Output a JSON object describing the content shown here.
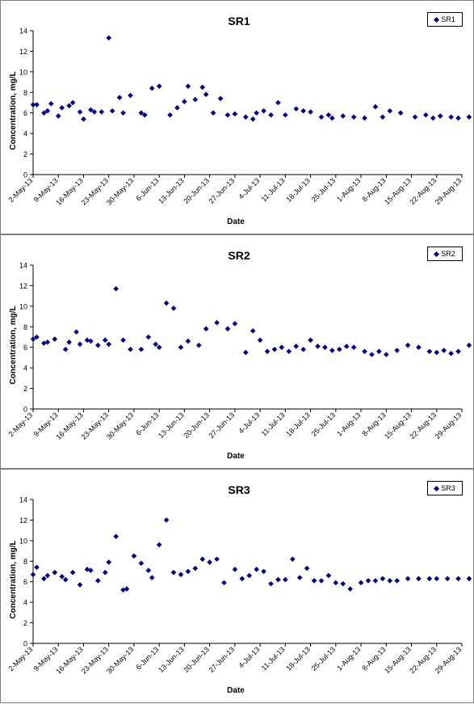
{
  "chart_data": [
    {
      "type": "scatter",
      "title": "SR1",
      "xlabel": "Date",
      "ylabel": "Concentration, mg/L",
      "ylim": [
        0,
        14
      ],
      "yticks": [
        0,
        2,
        4,
        6,
        8,
        10,
        12,
        14
      ],
      "xticks": [
        "2-May-13",
        "9-May-13",
        "16-May-13",
        "23-May-13",
        "30-May-13",
        "6-Jun-13",
        "13-Jun-13",
        "20-Jun-13",
        "27-Jun-13",
        "4-Jul-13",
        "11-Jul-13",
        "18-Jul-13",
        "25-Jul-13",
        "1-Aug-13",
        "8-Aug-13",
        "15-Aug-13",
        "22-Aug-13",
        "29-Aug-13"
      ],
      "grid": false,
      "legend_position": "top-right",
      "marker_color": "#000080",
      "series": [
        {
          "name": "SR1",
          "x": [
            "2-May-13",
            "3-May-13",
            "5-May-13",
            "6-May-13",
            "7-May-13",
            "9-May-13",
            "10-May-13",
            "12-May-13",
            "13-May-13",
            "15-May-13",
            "16-May-13",
            "18-May-13",
            "19-May-13",
            "21-May-13",
            "23-May-13",
            "24-May-13",
            "26-May-13",
            "27-May-13",
            "29-May-13",
            "1-Jun-13",
            "2-Jun-13",
            "4-Jun-13",
            "6-Jun-13",
            "9-Jun-13",
            "11-Jun-13",
            "13-Jun-13",
            "14-Jun-13",
            "16-Jun-13",
            "18-Jun-13",
            "19-Jun-13",
            "21-Jun-13",
            "23-Jun-13",
            "25-Jun-13",
            "27-Jun-13",
            "30-Jun-13",
            "2-Jul-13",
            "3-Jul-13",
            "5-Jul-13",
            "7-Jul-13",
            "9-Jul-13",
            "11-Jul-13",
            "14-Jul-13",
            "16-Jul-13",
            "18-Jul-13",
            "21-Jul-13",
            "23-Jul-13",
            "24-Jul-13",
            "27-Jul-13",
            "30-Jul-13",
            "2-Aug-13",
            "5-Aug-13",
            "7-Aug-13",
            "9-Aug-13",
            "12-Aug-13",
            "16-Aug-13",
            "19-Aug-13",
            "21-Aug-13",
            "23-Aug-13",
            "26-Aug-13",
            "28-Aug-13",
            "31-Aug-13"
          ],
          "y": [
            6.8,
            6.8,
            6.0,
            6.2,
            6.9,
            5.7,
            6.5,
            6.7,
            7.0,
            6.1,
            5.4,
            6.3,
            6.1,
            6.1,
            13.3,
            6.2,
            7.5,
            6.0,
            7.7,
            6.0,
            5.8,
            8.4,
            8.6,
            5.8,
            6.5,
            7.1,
            8.6,
            7.3,
            8.5,
            7.8,
            6.0,
            7.4,
            5.8,
            5.9,
            5.6,
            5.4,
            6.0,
            6.2,
            5.8,
            7.0,
            5.8,
            6.4,
            6.2,
            6.1,
            5.6,
            5.8,
            5.5,
            5.7,
            5.6,
            5.5,
            6.6,
            5.6,
            6.2,
            6.0,
            5.6,
            5.8,
            5.5,
            5.7,
            5.6,
            5.5,
            5.6
          ]
        }
      ]
    },
    {
      "type": "scatter",
      "title": "SR2",
      "xlabel": "Date",
      "ylabel": "Concentration, mg/L",
      "ylim": [
        0,
        14
      ],
      "yticks": [
        0,
        2,
        4,
        6,
        8,
        10,
        12,
        14
      ],
      "xticks": [
        "2-May-13",
        "9-May-13",
        "16-May-13",
        "23-May-13",
        "30-May-13",
        "6-Jun-13",
        "13-Jun-13",
        "20-Jun-13",
        "27-Jun-13",
        "4-Jul-13",
        "11-Jul-13",
        "18-Jul-13",
        "25-Jul-13",
        "1-Aug-13",
        "8-Aug-13",
        "15-Aug-13",
        "22-Aug-13",
        "29-Aug-13"
      ],
      "grid": false,
      "legend_position": "top-right",
      "marker_color": "#000080",
      "series": [
        {
          "name": "SR2",
          "x": [
            "2-May-13",
            "3-May-13",
            "5-May-13",
            "6-May-13",
            "8-May-13",
            "11-May-13",
            "12-May-13",
            "14-May-13",
            "15-May-13",
            "17-May-13",
            "18-May-13",
            "20-May-13",
            "22-May-13",
            "23-May-13",
            "25-May-13",
            "27-May-13",
            "29-May-13",
            "1-Jun-13",
            "3-Jun-13",
            "5-Jun-13",
            "6-Jun-13",
            "8-Jun-13",
            "10-Jun-13",
            "12-Jun-13",
            "14-Jun-13",
            "17-Jun-13",
            "19-Jun-13",
            "22-Jun-13",
            "25-Jun-13",
            "27-Jun-13",
            "30-Jun-13",
            "2-Jul-13",
            "4-Jul-13",
            "6-Jul-13",
            "8-Jul-13",
            "10-Jul-13",
            "12-Jul-13",
            "14-Jul-13",
            "16-Jul-13",
            "18-Jul-13",
            "20-Jul-13",
            "22-Jul-13",
            "24-Jul-13",
            "26-Jul-13",
            "28-Jul-13",
            "30-Jul-13",
            "2-Aug-13",
            "4-Aug-13",
            "6-Aug-13",
            "8-Aug-13",
            "11-Aug-13",
            "14-Aug-13",
            "17-Aug-13",
            "20-Aug-13",
            "22-Aug-13",
            "24-Aug-13",
            "26-Aug-13",
            "28-Aug-13",
            "31-Aug-13"
          ],
          "y": [
            6.8,
            7.0,
            6.4,
            6.5,
            6.8,
            5.8,
            6.5,
            7.5,
            6.3,
            6.7,
            6.6,
            6.2,
            6.7,
            6.3,
            11.7,
            6.7,
            5.8,
            5.8,
            7.0,
            6.3,
            6.0,
            10.3,
            9.8,
            6.0,
            6.6,
            6.2,
            7.8,
            8.4,
            7.8,
            8.3,
            5.5,
            7.6,
            6.7,
            5.6,
            5.8,
            6.0,
            5.6,
            6.1,
            5.8,
            6.7,
            6.1,
            6.0,
            5.7,
            5.8,
            6.1,
            6.0,
            5.6,
            5.3,
            5.6,
            5.3,
            5.7,
            6.2,
            6.0,
            5.6,
            5.5,
            5.7,
            5.4,
            5.6,
            6.2
          ]
        }
      ]
    },
    {
      "type": "scatter",
      "title": "SR3",
      "xlabel": "Date",
      "ylabel": "Concentration, mg/L",
      "ylim": [
        0,
        14
      ],
      "yticks": [
        0,
        2,
        4,
        6,
        8,
        10,
        12,
        14
      ],
      "xticks": [
        "2-May-13",
        "9-May-13",
        "16-May-13",
        "23-May-13",
        "30-May-13",
        "6-Jun-13",
        "13-Jun-13",
        "20-Jun-13",
        "27-Jun-13",
        "4-Jul-13",
        "11-Jul-13",
        "18-Jul-13",
        "25-Jul-13",
        "1-Aug-13",
        "8-Aug-13",
        "15-Aug-13",
        "22-Aug-13",
        "29-Aug-13"
      ],
      "grid": false,
      "legend_position": "top-right",
      "marker_color": "#000080",
      "series": [
        {
          "name": "SR3",
          "x": [
            "2-May-13",
            "3-May-13",
            "5-May-13",
            "6-May-13",
            "8-May-13",
            "10-May-13",
            "11-May-13",
            "13-May-13",
            "15-May-13",
            "17-May-13",
            "18-May-13",
            "20-May-13",
            "22-May-13",
            "23-May-13",
            "25-May-13",
            "27-May-13",
            "28-May-13",
            "30-May-13",
            "1-Jun-13",
            "3-Jun-13",
            "4-Jun-13",
            "6-Jun-13",
            "8-Jun-13",
            "10-Jun-13",
            "12-Jun-13",
            "14-Jun-13",
            "16-Jun-13",
            "18-Jun-13",
            "20-Jun-13",
            "22-Jun-13",
            "24-Jun-13",
            "27-Jun-13",
            "29-Jun-13",
            "1-Jul-13",
            "3-Jul-13",
            "5-Jul-13",
            "7-Jul-13",
            "9-Jul-13",
            "11-Jul-13",
            "13-Jul-13",
            "15-Jul-13",
            "17-Jul-13",
            "19-Jul-13",
            "21-Jul-13",
            "23-Jul-13",
            "25-Jul-13",
            "27-Jul-13",
            "29-Jul-13",
            "1-Aug-13",
            "3-Aug-13",
            "5-Aug-13",
            "7-Aug-13",
            "9-Aug-13",
            "11-Aug-13",
            "14-Aug-13",
            "17-Aug-13",
            "20-Aug-13",
            "22-Aug-13",
            "25-Aug-13",
            "28-Aug-13",
            "31-Aug-13"
          ],
          "y": [
            6.7,
            7.4,
            6.3,
            6.6,
            6.9,
            6.5,
            6.2,
            6.9,
            5.7,
            7.2,
            7.1,
            6.1,
            6.9,
            7.9,
            10.4,
            5.2,
            5.3,
            8.5,
            7.8,
            7.1,
            6.4,
            9.6,
            12.0,
            6.9,
            6.7,
            7.0,
            7.3,
            8.2,
            7.9,
            8.2,
            5.9,
            7.2,
            6.3,
            6.6,
            7.2,
            7.0,
            5.8,
            6.2,
            6.2,
            8.2,
            6.4,
            7.3,
            6.1,
            6.1,
            6.6,
            5.9,
            5.8,
            5.3,
            5.9,
            6.1,
            6.1,
            6.3,
            6.1,
            6.1,
            6.3,
            6.3,
            6.3,
            6.3,
            6.3,
            6.3,
            6.3
          ]
        }
      ]
    }
  ]
}
